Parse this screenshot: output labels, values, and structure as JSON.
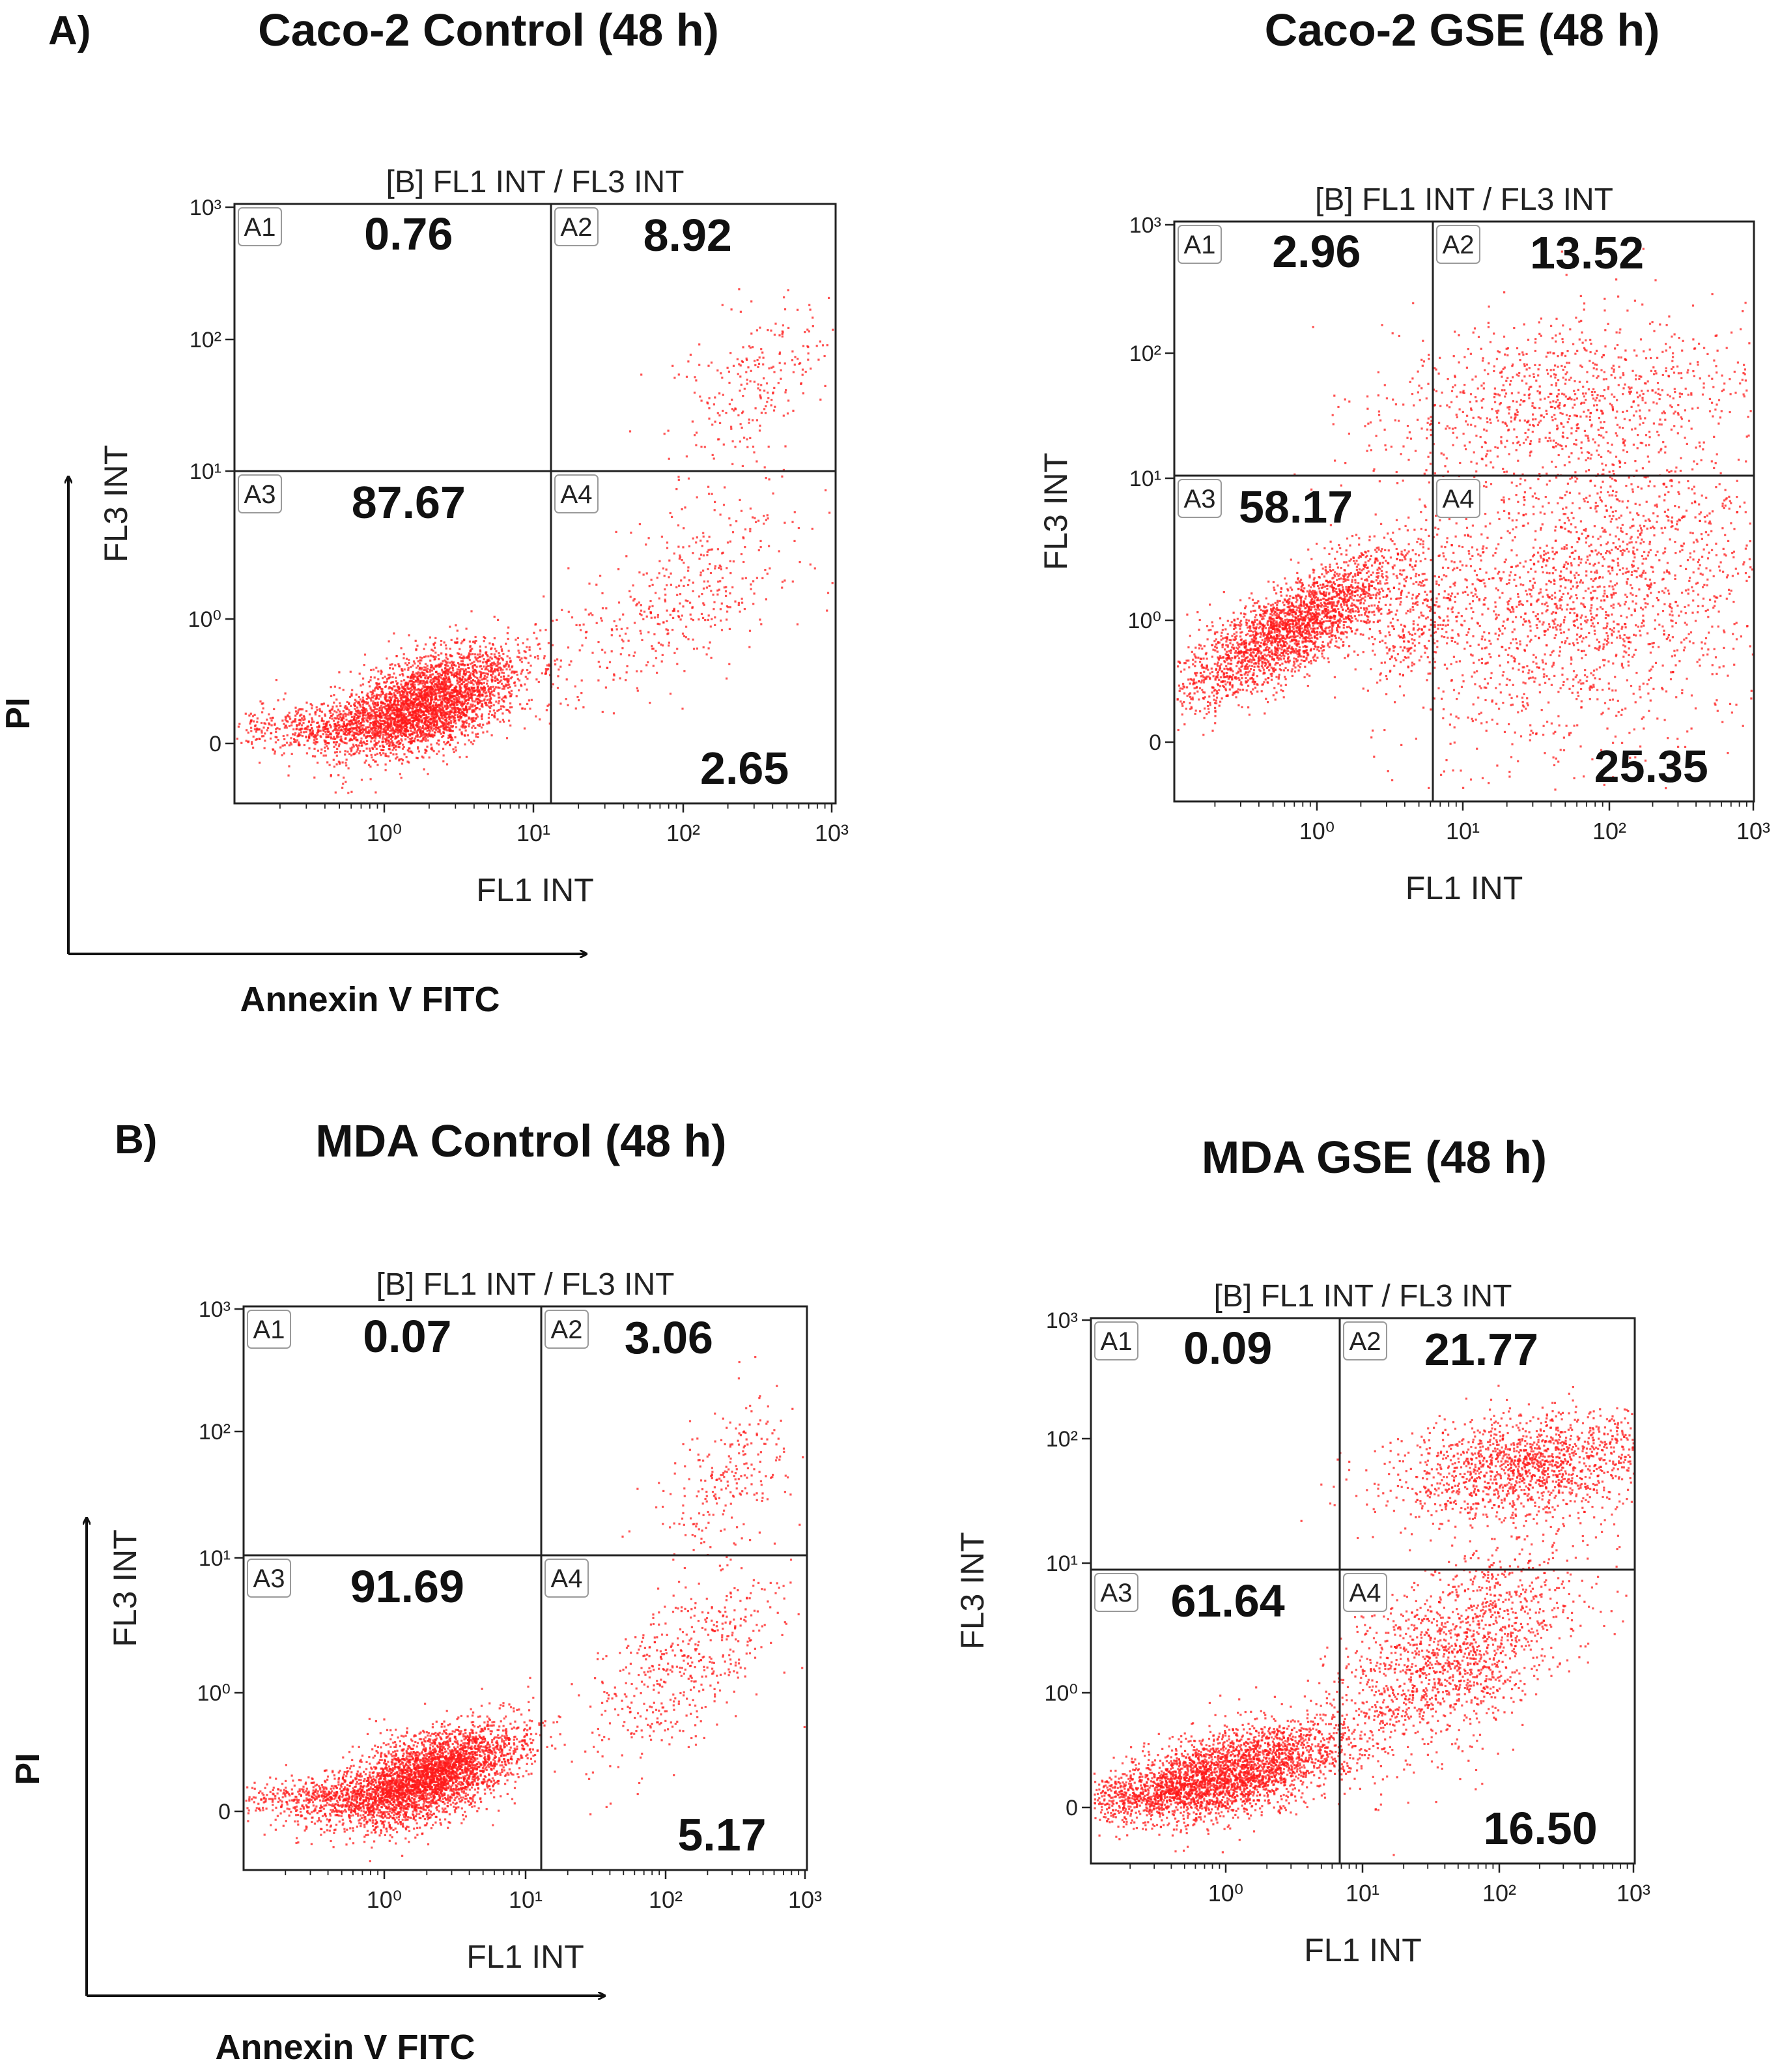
{
  "panel_labels": [
    "A)",
    "B)"
  ],
  "titles": [
    "Caco-2 Control (48 h)",
    "Caco-2 GSE (48 h)",
    "MDA Control (48 h)",
    "MDA GSE (48 h)"
  ],
  "outer_axes": {
    "y_label": "PI",
    "x_label": "Annexin V FITC"
  },
  "colors": {
    "dots": "#ff1a1a",
    "axis": "#222222",
    "text": "#111111"
  },
  "chart_data": [
    {
      "type": "scatter",
      "title": "[B] FL1 INT / FL3 INT",
      "xlabel": "FL1 INT",
      "ylabel": "FL3 INT",
      "x_ticks": [
        "10⁰",
        "10¹",
        "10²",
        "10³"
      ],
      "y_ticks": [
        "0",
        "10⁰",
        "10¹",
        "10²",
        "10³"
      ],
      "x_scale": "log",
      "y_scale": "log",
      "gate_x": "10¹",
      "gate_y": "10¹",
      "quadrants": [
        {
          "name": "A1",
          "value": "0.76"
        },
        {
          "name": "A2",
          "value": "8.92"
        },
        {
          "name": "A3",
          "value": "87.67"
        },
        {
          "name": "A4",
          "value": "2.65"
        }
      ]
    },
    {
      "type": "scatter",
      "title": "[B] FL1 INT / FL3 INT",
      "xlabel": "FL1 INT",
      "ylabel": "FL3 INT",
      "x_ticks": [
        "10⁰",
        "10¹",
        "10²",
        "10³"
      ],
      "y_ticks": [
        "0",
        "10⁰",
        "10¹",
        "10²",
        "10³"
      ],
      "x_scale": "log",
      "y_scale": "log",
      "gate_x": "10¹",
      "gate_y": "10¹",
      "quadrants": [
        {
          "name": "A1",
          "value": "2.96"
        },
        {
          "name": "A2",
          "value": "13.52"
        },
        {
          "name": "A3",
          "value": "58.17"
        },
        {
          "name": "A4",
          "value": "25.35"
        }
      ]
    },
    {
      "type": "scatter",
      "title": "[B] FL1 INT / FL3 INT",
      "xlabel": "FL1 INT",
      "ylabel": "FL3 INT",
      "x_ticks": [
        "10⁰",
        "10¹",
        "10²",
        "10³"
      ],
      "y_ticks": [
        "0",
        "10⁰",
        "10¹",
        "10²",
        "10³"
      ],
      "x_scale": "log",
      "y_scale": "log",
      "gate_x": "10¹",
      "gate_y": "10¹",
      "quadrants": [
        {
          "name": "A1",
          "value": "0.07"
        },
        {
          "name": "A2",
          "value": "3.06"
        },
        {
          "name": "A3",
          "value": "91.69"
        },
        {
          "name": "A4",
          "value": "5.17"
        }
      ]
    },
    {
      "type": "scatter",
      "title": "[B] FL1 INT / FL3 INT",
      "xlabel": "FL1 INT",
      "ylabel": "FL3 INT",
      "x_ticks": [
        "10⁰",
        "10¹",
        "10²",
        "10³"
      ],
      "y_ticks": [
        "0",
        "10⁰",
        "10¹",
        "10²",
        "10³"
      ],
      "x_scale": "log",
      "y_scale": "log",
      "gate_x": "10¹",
      "gate_y": "10¹",
      "quadrants": [
        {
          "name": "A1",
          "value": "0.09"
        },
        {
          "name": "A2",
          "value": "21.77"
        },
        {
          "name": "A3",
          "value": "61.64"
        },
        {
          "name": "A4",
          "value": "16.50"
        }
      ]
    }
  ]
}
